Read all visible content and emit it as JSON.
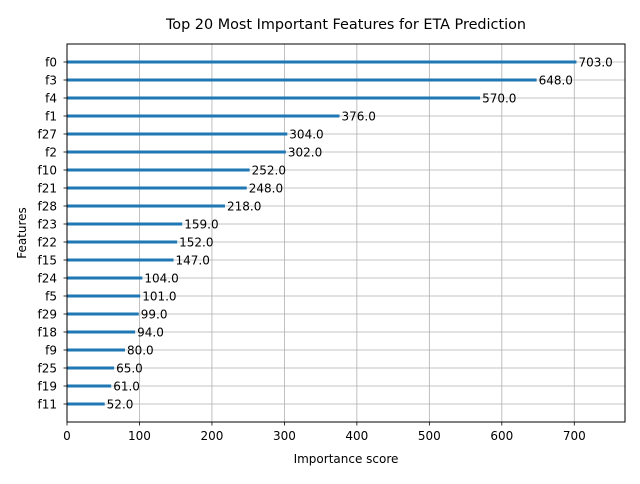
{
  "chart_data": {
    "type": "bar",
    "orientation": "horizontal",
    "title": "Top 20 Most Important Features for ETA Prediction",
    "xlabel": "Importance score",
    "ylabel": "Features",
    "xlim": [
      0,
      770
    ],
    "xticks": [
      0,
      100,
      200,
      300,
      400,
      500,
      600,
      700
    ],
    "grid": true,
    "bar_color": "#1f77b4",
    "categories": [
      "f0",
      "f3",
      "f4",
      "f1",
      "f27",
      "f2",
      "f10",
      "f21",
      "f28",
      "f23",
      "f22",
      "f15",
      "f24",
      "f5",
      "f29",
      "f18",
      "f9",
      "f25",
      "f19",
      "f11"
    ],
    "values": [
      703.0,
      648.0,
      570.0,
      376.0,
      304.0,
      302.0,
      252.0,
      248.0,
      218.0,
      159.0,
      152.0,
      147.0,
      104.0,
      101.0,
      99.0,
      94.0,
      80.0,
      65.0,
      61.0,
      52.0
    ],
    "value_labels": [
      "703.0",
      "648.0",
      "570.0",
      "376.0",
      "304.0",
      "302.0",
      "252.0",
      "248.0",
      "218.0",
      "159.0",
      "152.0",
      "147.0",
      "104.0",
      "101.0",
      "99.0",
      "94.0",
      "80.0",
      "65.0",
      "61.0",
      "52.0"
    ]
  }
}
